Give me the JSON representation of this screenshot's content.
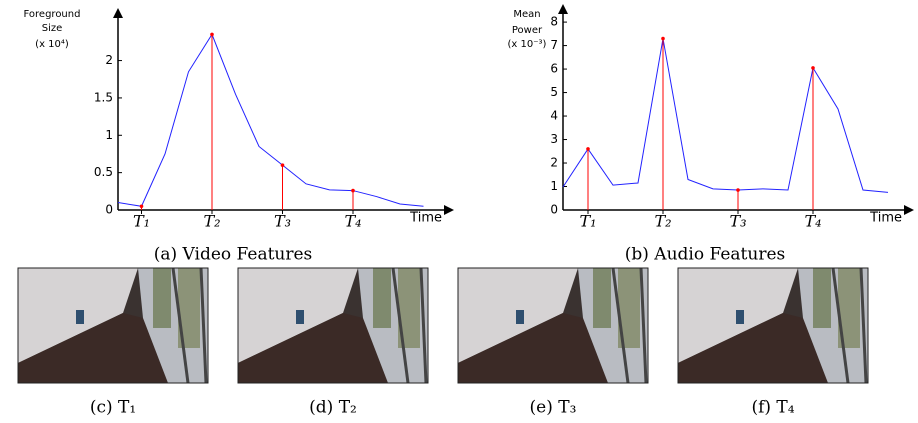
{
  "chart_data": [
    {
      "type": "line",
      "ylabel": [
        "Foreground",
        "Size",
        "(x 10⁴)"
      ],
      "xlabel": "Time",
      "caption": "(a) Video Features",
      "categories": [
        null,
        "T₁",
        null,
        null,
        "T₂",
        null,
        null,
        "T₃",
        null,
        null,
        "T₄",
        null,
        null,
        null
      ],
      "series": [
        {
          "color": "#2222ff",
          "values": [
            0.1,
            0.05,
            0.75,
            1.85,
            2.35,
            1.55,
            0.85,
            0.6,
            0.35,
            0.27,
            0.26,
            0.18,
            0.08,
            0.05
          ]
        }
      ],
      "highlight_color": "#ff0000",
      "ylim": [
        0,
        2.65
      ],
      "yticks": [
        0,
        0.5,
        1,
        1.5,
        2
      ]
    },
    {
      "type": "line",
      "ylabel": [
        "Mean",
        "Power",
        "(x 10⁻³)"
      ],
      "xlabel": "Time",
      "caption": "(b) Audio Features",
      "categories": [
        null,
        "T₁",
        null,
        null,
        "T₂",
        null,
        null,
        "T₃",
        null,
        null,
        "T₄",
        null,
        null,
        null
      ],
      "series": [
        {
          "color": "#2222ff",
          "values": [
            0.98,
            2.6,
            1.06,
            1.15,
            7.3,
            1.3,
            0.9,
            0.85,
            0.9,
            0.85,
            6.05,
            4.3,
            0.85,
            0.75
          ]
        }
      ],
      "highlight_color": "#ff0000",
      "ylim": [
        0,
        8.6
      ],
      "yticks": [
        0,
        1,
        2,
        3,
        4,
        5,
        6,
        7,
        8
      ]
    }
  ],
  "panels": [
    {
      "caption": "(c) T₁"
    },
    {
      "caption": "(d) T₂"
    },
    {
      "caption": "(e) T₃"
    },
    {
      "caption": "(f) T₄"
    }
  ]
}
